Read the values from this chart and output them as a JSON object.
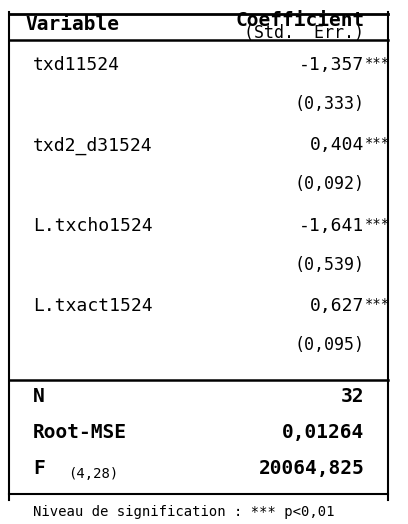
{
  "col1_header": "Variable",
  "col2_header": "Coefficient",
  "col2_subheader": "(Std.  Err.)",
  "rows": [
    {
      "var": "txd11524",
      "coef": "-1,357***",
      "se": "(0,333)"
    },
    {
      "var": "txd2_d31524",
      "coef": "0,404***",
      "se": "(0,092)"
    },
    {
      "var": "L.txcho1524",
      "coef": "-1,641***",
      "se": "(0,539)"
    },
    {
      "var": "L.txact1524",
      "coef": "0,627***",
      "se": "(0,095)"
    }
  ],
  "stats": [
    {
      "label": "N",
      "label_sub": "",
      "value": "32"
    },
    {
      "label": "Root-MSE",
      "label_sub": "",
      "value": "0,01264"
    },
    {
      "label": "F",
      "label_sub": "(4,28)",
      "value": "20064,825"
    }
  ],
  "footnote": "Niveau de signification : *** p<0,01",
  "bg_color": "#ffffff",
  "text_color": "#000000",
  "font_size": 13,
  "header_font_size": 14
}
